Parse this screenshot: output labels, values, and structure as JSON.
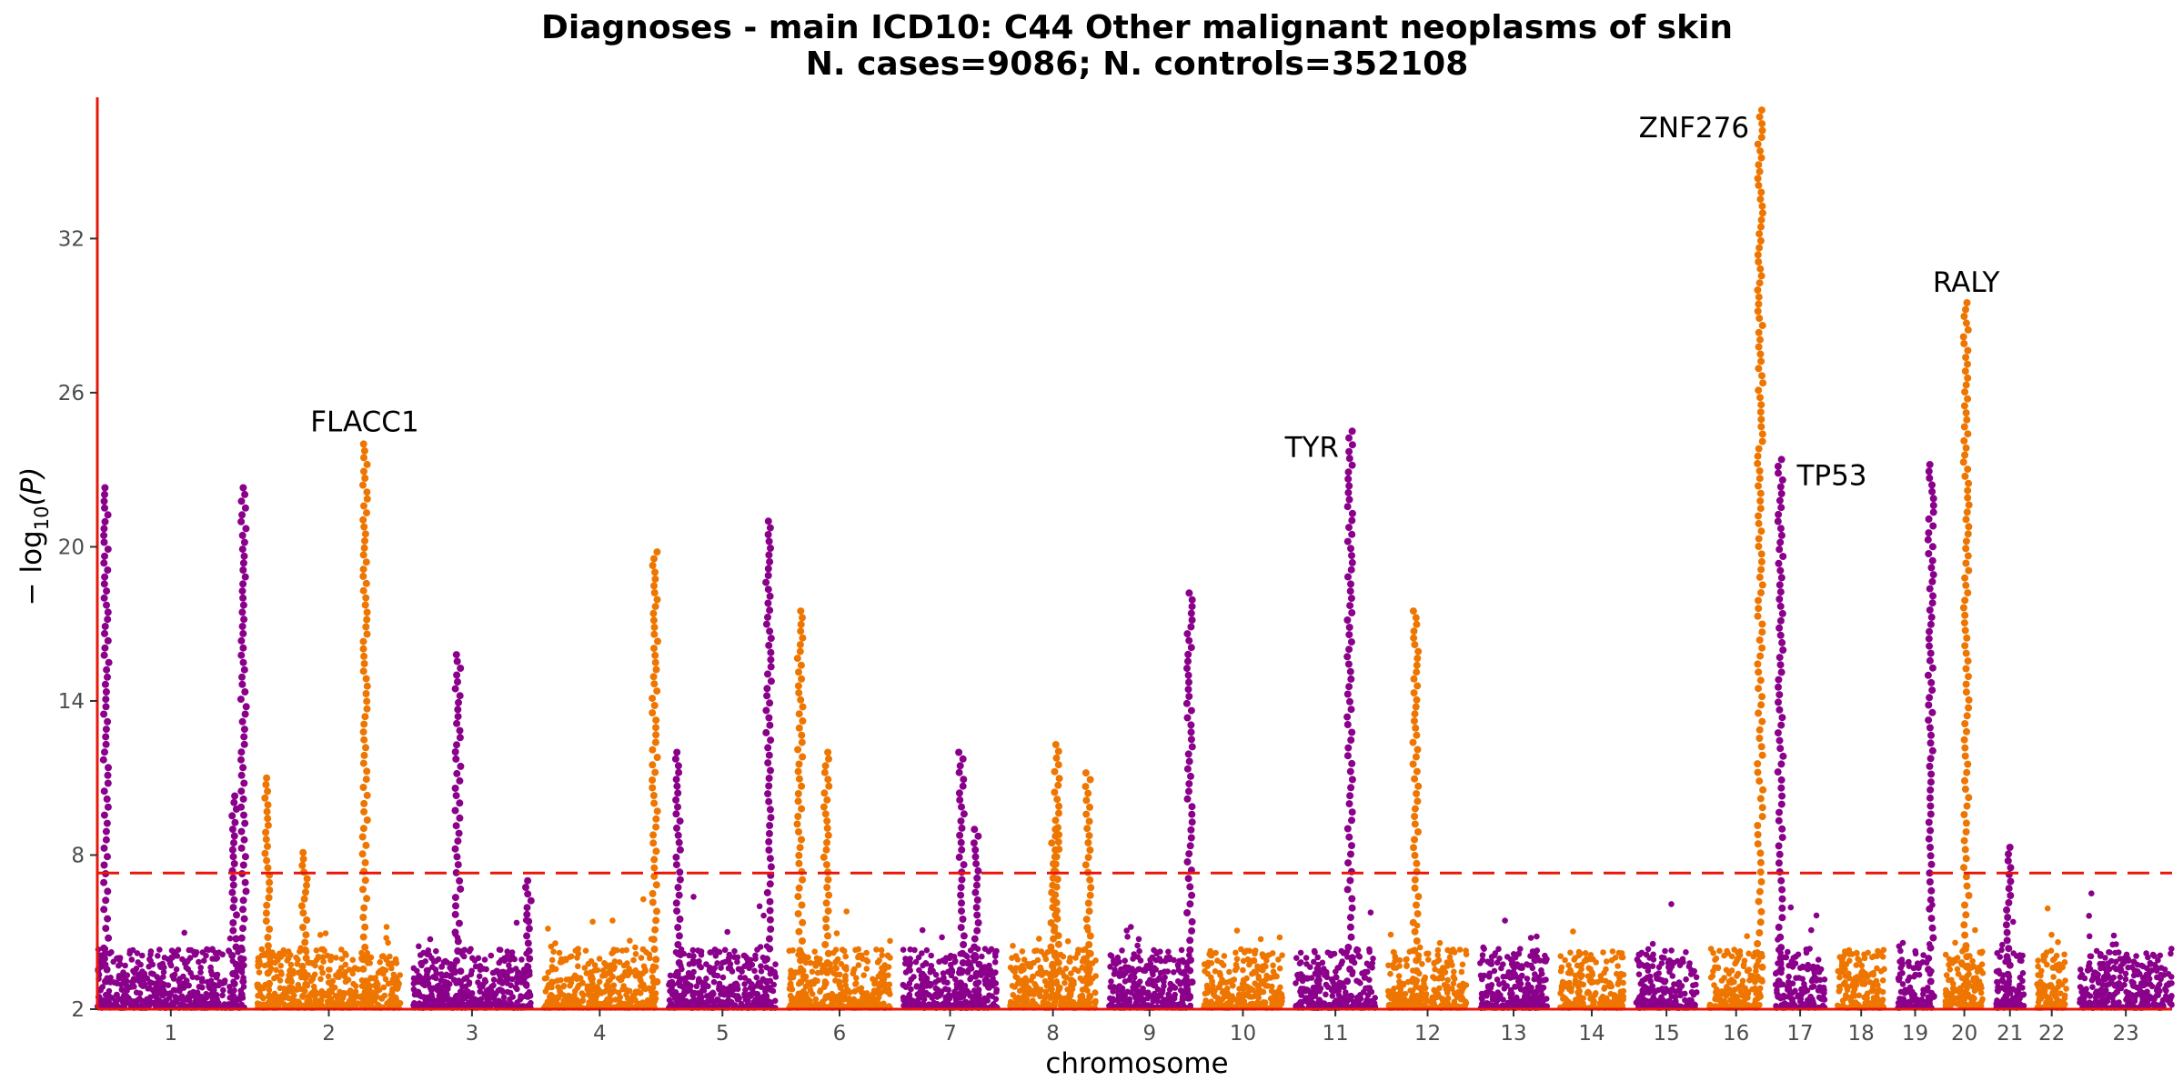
{
  "chart_data": {
    "type": "scatter",
    "title_line1": "Diagnoses - main ICD10: C44 Other malignant neoplasms of skin",
    "title_line2": "N. cases=9086; N. controls=352108",
    "xlabel": "chromosome",
    "ylabel": "−log10(P)",
    "ylabel_main": "− log",
    "ylabel_sub": "10",
    "ylabel_var": "(P)",
    "ylim": [
      2,
      37.5
    ],
    "yticks": [
      2,
      8,
      14,
      20,
      26,
      32
    ],
    "significance_threshold": 7.3,
    "colors": {
      "odd_chromosome": "#8B008B",
      "even_chromosome": "#EE7600",
      "threshold_line": "#E8170A",
      "axis_line": "#E8170A"
    },
    "chromosomes": [
      {
        "label": "1",
        "length": 248,
        "color": "purple"
      },
      {
        "label": "2",
        "length": 242,
        "color": "orange"
      },
      {
        "label": "3",
        "length": 198,
        "color": "purple"
      },
      {
        "label": "4",
        "length": 190,
        "color": "orange"
      },
      {
        "label": "5",
        "length": 181,
        "color": "purple"
      },
      {
        "label": "6",
        "length": 171,
        "color": "orange"
      },
      {
        "label": "7",
        "length": 159,
        "color": "purple"
      },
      {
        "label": "8",
        "length": 145,
        "color": "orange"
      },
      {
        "label": "9",
        "length": 138,
        "color": "purple"
      },
      {
        "label": "10",
        "length": 134,
        "color": "orange"
      },
      {
        "label": "11",
        "length": 135,
        "color": "purple"
      },
      {
        "label": "12",
        "length": 133,
        "color": "orange"
      },
      {
        "label": "13",
        "length": 114,
        "color": "purple"
      },
      {
        "label": "14",
        "length": 107,
        "color": "orange"
      },
      {
        "label": "15",
        "length": 102,
        "color": "purple"
      },
      {
        "label": "16",
        "length": 90,
        "color": "orange"
      },
      {
        "label": "17",
        "length": 83,
        "color": "purple"
      },
      {
        "label": "18",
        "length": 80,
        "color": "orange"
      },
      {
        "label": "19",
        "length": 59,
        "color": "purple"
      },
      {
        "label": "20",
        "length": 64,
        "color": "orange"
      },
      {
        "label": "21",
        "length": 47,
        "color": "purple"
      },
      {
        "label": "22",
        "length": 51,
        "color": "orange"
      },
      {
        "label": "23",
        "length": 156,
        "color": "purple"
      }
    ],
    "peaks": [
      {
        "chr": "1",
        "pos": 0.06,
        "max": 22.3
      },
      {
        "chr": "1",
        "pos": 0.93,
        "max": 10.3
      },
      {
        "chr": "1",
        "pos": 0.995,
        "max": 22.3
      },
      {
        "chr": "2",
        "pos": 0.07,
        "max": 11.0
      },
      {
        "chr": "2",
        "pos": 0.33,
        "max": 8.1
      },
      {
        "chr": "2",
        "pos": 0.75,
        "max": 24.0
      },
      {
        "chr": "3",
        "pos": 0.38,
        "max": 15.8
      },
      {
        "chr": "3",
        "pos": 0.98,
        "max": 7.0
      },
      {
        "chr": "4",
        "pos": 0.99,
        "max": 19.8
      },
      {
        "chr": "5",
        "pos": 0.09,
        "max": 12.0
      },
      {
        "chr": "5",
        "pos": 0.93,
        "max": 21.0
      },
      {
        "chr": "6",
        "pos": 0.11,
        "max": 17.5
      },
      {
        "chr": "6",
        "pos": 0.37,
        "max": 12.0
      },
      {
        "chr": "7",
        "pos": 0.62,
        "max": 12.0
      },
      {
        "chr": "7",
        "pos": 0.78,
        "max": 9.0
      },
      {
        "chr": "8",
        "pos": 0.55,
        "max": 12.3
      },
      {
        "chr": "8",
        "pos": 0.5,
        "max": 9.0
      },
      {
        "chr": "8",
        "pos": 0.91,
        "max": 11.2
      },
      {
        "chr": "9",
        "pos": 0.99,
        "max": 18.2
      },
      {
        "chr": "11",
        "pos": 0.68,
        "max": 24.5
      },
      {
        "chr": "12",
        "pos": 0.35,
        "max": 17.5
      },
      {
        "chr": "16",
        "pos": 0.95,
        "max": 37.0
      },
      {
        "chr": "17",
        "pos": 0.1,
        "max": 23.4
      },
      {
        "chr": "19",
        "pos": 0.95,
        "max": 23.2
      },
      {
        "chr": "20",
        "pos": 0.55,
        "max": 29.5
      },
      {
        "chr": "21",
        "pos": 0.45,
        "max": 8.3
      }
    ],
    "annotations": [
      {
        "gene": "FLACC1",
        "chr": "2",
        "pos": 0.75,
        "y": 24.0
      },
      {
        "gene": "TYR",
        "chr": "11",
        "pos": 0.68,
        "y": 24.5
      },
      {
        "gene": "ZNF276",
        "chr": "16",
        "pos": 0.95,
        "y": 37.0
      },
      {
        "gene": "TP53",
        "chr": "17",
        "pos": 0.1,
        "y": 23.4
      },
      {
        "gene": "RALY",
        "chr": "20",
        "pos": 0.55,
        "y": 29.5
      }
    ]
  }
}
